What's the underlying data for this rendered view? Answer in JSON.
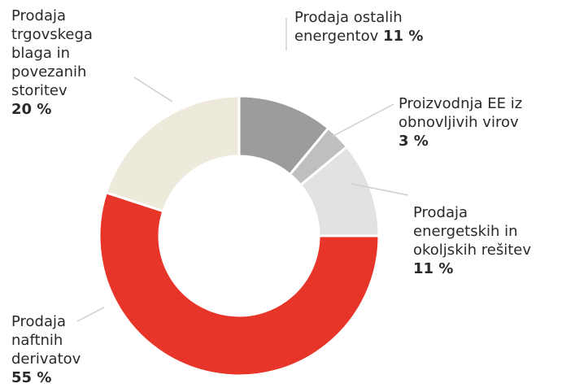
{
  "chart_data": {
    "type": "donut",
    "categories": [
      "Prodaja ostalih energentov",
      "Proizvodnja EE iz obnovljivih virov",
      "Prodaja energetskih in okoljskih rešitev",
      "Prodaja naftnih derivatov",
      "Prodaja trgovskega blaga in povezanih storitev"
    ],
    "values": [
      11,
      3,
      11,
      55,
      20
    ],
    "value_labels": [
      "11 %",
      "3 %",
      "11 %",
      "55 %",
      "20 %"
    ],
    "colors": [
      "#9c9c9c",
      "#bfbfbf",
      "#e2e2e2",
      "#e8352a",
      "#eeeadb"
    ]
  }
}
